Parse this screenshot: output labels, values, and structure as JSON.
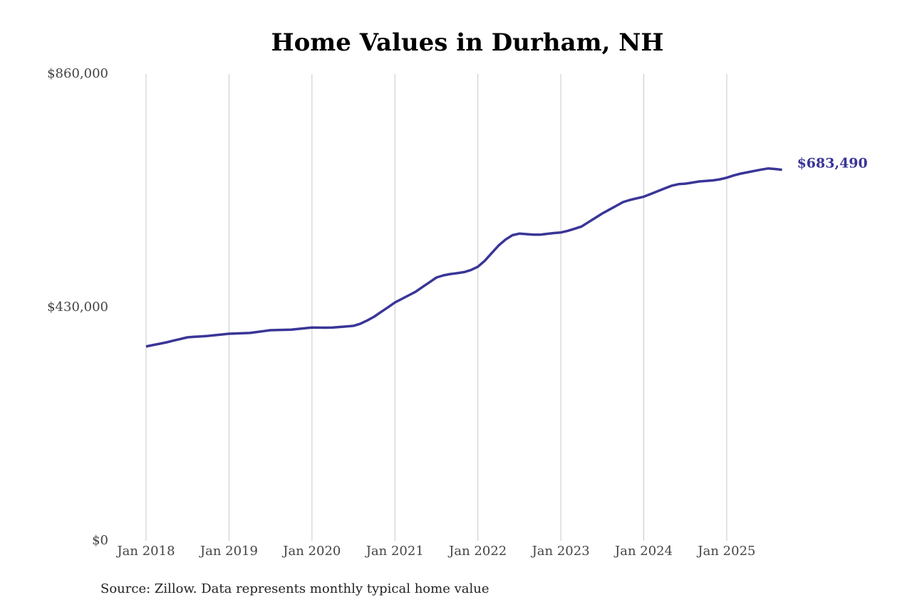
{
  "chart_data": {
    "type": "line",
    "title": "Home Values in Durham, NH",
    "source": "Source: Zillow. Data represents monthly typical home value",
    "categories": [
      "Jan 2018",
      null,
      null,
      null,
      null,
      null,
      null,
      null,
      null,
      null,
      null,
      null,
      "Jan 2019",
      null,
      null,
      null,
      null,
      null,
      null,
      null,
      null,
      null,
      null,
      null,
      "Jan 2020",
      null,
      null,
      null,
      null,
      null,
      null,
      null,
      null,
      null,
      null,
      null,
      "Jan 2021",
      null,
      null,
      null,
      null,
      null,
      null,
      null,
      null,
      null,
      null,
      null,
      "Jan 2022",
      null,
      null,
      null,
      null,
      null,
      null,
      null,
      null,
      null,
      null,
      null,
      "Jan 2023",
      null,
      null,
      null,
      null,
      null,
      null,
      null,
      null,
      null,
      null,
      null,
      "Jan 2024",
      null,
      null,
      null,
      null,
      null,
      null,
      null,
      null,
      null,
      null,
      null,
      "Jan 2025",
      null,
      null,
      null,
      null,
      null,
      null,
      null,
      null
    ],
    "series": [
      {
        "color": "#3a3597",
        "values": [
          358000,
          360600,
          363200,
          365800,
          368900,
          371900,
          375000,
          375900,
          376700,
          377600,
          378900,
          380200,
          381500,
          382000,
          382500,
          383000,
          384700,
          386300,
          388000,
          388300,
          388700,
          389000,
          390300,
          391700,
          393000,
          392800,
          392700,
          393000,
          394000,
          395000,
          396000,
          400000,
          406000,
          413000,
          421700,
          430300,
          439000,
          445700,
          452300,
          459000,
          467700,
          476300,
          485000,
          489000,
          491500,
          493000,
          495000,
          499000,
          505000,
          516000,
          530000,
          544000,
          555000,
          563000,
          566000,
          565000,
          564000,
          564000,
          565500,
          567000,
          568000,
          571000,
          575000,
          579000,
          587000,
          595000,
          603000,
          610000,
          617000,
          624000,
          628000,
          631000,
          634000,
          639000,
          644000,
          649000,
          654000,
          657000,
          658000,
          660000,
          662000,
          663000,
          664000,
          666000,
          669000,
          673000,
          676500,
          679000,
          681500,
          684000,
          686000,
          685000,
          683490
        ],
        "value_labels": [
          null,
          null,
          null,
          null,
          null,
          null,
          null,
          null,
          null,
          null,
          null,
          null,
          null,
          null,
          null,
          null,
          null,
          null,
          null,
          null,
          null,
          null,
          null,
          null,
          null,
          null,
          null,
          null,
          null,
          null,
          null,
          null,
          null,
          null,
          null,
          null,
          null,
          null,
          null,
          null,
          null,
          null,
          null,
          null,
          null,
          null,
          null,
          null,
          null,
          null,
          null,
          null,
          null,
          null,
          null,
          null,
          null,
          null,
          null,
          null,
          null,
          null,
          null,
          null,
          null,
          null,
          null,
          null,
          null,
          null,
          null,
          null,
          null,
          null,
          null,
          null,
          null,
          null,
          null,
          null,
          null,
          null,
          null,
          null,
          null,
          null,
          null,
          null,
          null,
          null,
          null,
          null,
          "$683,490"
        ]
      }
    ],
    "ylim": [
      0,
      860000
    ],
    "yticks": [
      {
        "value": 0,
        "label": "$0"
      },
      {
        "value": 430000,
        "label": "$430,000"
      },
      {
        "value": 860000,
        "label": "$860,000"
      }
    ],
    "x_grid": true
  }
}
